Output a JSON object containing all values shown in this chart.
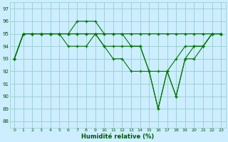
{
  "xlabel": "Humidité relative (%)",
  "bg_color": "#cceeff",
  "line_color": "#007700",
  "grid_color": "#99cccc",
  "ylim": [
    87.5,
    97.5
  ],
  "xlim": [
    -0.5,
    23.5
  ],
  "yticks": [
    88,
    89,
    90,
    91,
    92,
    93,
    94,
    95,
    96,
    97
  ],
  "xticks": [
    0,
    1,
    2,
    3,
    4,
    5,
    6,
    7,
    8,
    9,
    10,
    11,
    12,
    13,
    14,
    15,
    16,
    17,
    18,
    19,
    20,
    21,
    22,
    23
  ],
  "series": [
    [
      93,
      95,
      95,
      95,
      95,
      95,
      95,
      96,
      96,
      96,
      95,
      95,
      95,
      95,
      95,
      95,
      95,
      95,
      95,
      95,
      95,
      95,
      95,
      95
    ],
    [
      93,
      95,
      95,
      95,
      95,
      95,
      95,
      95,
      95,
      95,
      95,
      95,
      95,
      94,
      94,
      92,
      92,
      92,
      93,
      94,
      94,
      94,
      95,
      95
    ],
    [
      93,
      95,
      95,
      95,
      95,
      95,
      95,
      95,
      95,
      95,
      94,
      94,
      94,
      94,
      94,
      92,
      89,
      92,
      90,
      93,
      94,
      94,
      95,
      95
    ],
    [
      93,
      95,
      95,
      95,
      95,
      95,
      94,
      94,
      94,
      95,
      94,
      93,
      93,
      92,
      92,
      92,
      89,
      92,
      90,
      93,
      93,
      94,
      95,
      95
    ]
  ]
}
